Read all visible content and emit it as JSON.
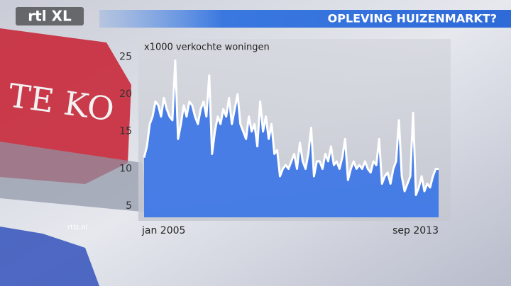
{
  "logo": "rtl XL",
  "watermark": "rtlz.nl",
  "background_sign": "TE KO",
  "chart_data": {
    "type": "area",
    "title": "OPLEVING HUIZENMARKT?",
    "y_label": "x1000 verkochte woningen",
    "categories": [
      "jan 2005",
      null,
      null,
      null,
      null,
      null,
      null,
      null,
      null,
      null,
      null,
      null,
      null,
      null,
      null,
      null,
      null,
      null,
      null,
      null,
      null,
      null,
      null,
      null,
      null,
      null,
      null,
      null,
      null,
      null,
      null,
      null,
      null,
      null,
      null,
      null,
      null,
      null,
      null,
      null,
      null,
      null,
      null,
      null,
      null,
      null,
      null,
      null,
      null,
      null,
      null,
      null,
      null,
      null,
      null,
      null,
      null,
      null,
      null,
      null,
      null,
      null,
      null,
      null,
      null,
      null,
      null,
      null,
      null,
      null,
      null,
      null,
      null,
      null,
      null,
      null,
      null,
      null,
      null,
      null,
      null,
      null,
      null,
      null,
      null,
      null,
      null,
      null,
      null,
      null,
      null,
      null,
      null,
      null,
      null,
      null,
      null,
      null,
      null,
      null,
      null,
      null,
      null,
      null,
      "sep 2013"
    ],
    "values": [
      11.5,
      13,
      16,
      17,
      19,
      18.5,
      17,
      19.5,
      18,
      17,
      16.5,
      24.5,
      14,
      16,
      18.5,
      17,
      19,
      18.5,
      17,
      16,
      18,
      19,
      17,
      22.5,
      12,
      15,
      17,
      16,
      18,
      17,
      19.5,
      16,
      18,
      20,
      16,
      15,
      14,
      17,
      15,
      16,
      13,
      19,
      15,
      17,
      14,
      16,
      12,
      12.5,
      9,
      10,
      10.5,
      10,
      11,
      12,
      10,
      13.5,
      11,
      10,
      12,
      15.5,
      9,
      11,
      11,
      10,
      12,
      11,
      13,
      10.5,
      11,
      10,
      11.5,
      14,
      8.5,
      10,
      11,
      10,
      10.5,
      10,
      11,
      10,
      9.5,
      11,
      10.5,
      14,
      8,
      9,
      9.5,
      8,
      10,
      11,
      16.5,
      9,
      7,
      8,
      9,
      17.5,
      6.5,
      7.5,
      9,
      7,
      8,
      7.5,
      9,
      10,
      10
    ],
    "color": "#ffffff",
    "fill_color": "#3f78e6",
    "ylim": [
      3.5,
      25.5
    ],
    "yticks": [
      5,
      10,
      15,
      20,
      25
    ],
    "grid": false
  }
}
